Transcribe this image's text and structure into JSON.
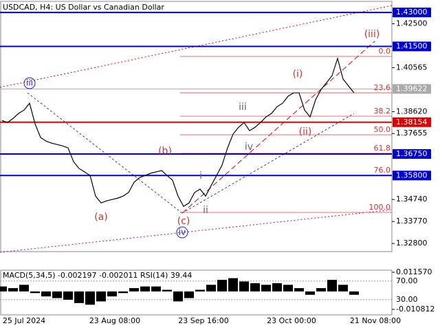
{
  "chart_data": {
    "type": "line",
    "title": "USDCAD, H4:  US Dollar vs Canadian Dollar",
    "color": "#000000",
    "ylim": [
      1.3247,
      1.4355
    ],
    "yticks": [
      {
        "value": 1.425,
        "label": "1.42500"
      },
      {
        "value": 1.40565,
        "label": "1.40565"
      },
      {
        "value": 1.3862,
        "label": "1.38620"
      },
      {
        "value": 1.37655,
        "label": "1.37655"
      },
      {
        "value": 1.3474,
        "label": "1.34740"
      },
      {
        "value": 1.3377,
        "label": "1.33770"
      },
      {
        "value": 1.328,
        "label": "1.32800"
      }
    ],
    "values": [
      1.3823,
      1.3814,
      1.3832,
      1.3854,
      1.3869,
      1.3899,
      1.3808,
      1.3748,
      1.3732,
      1.3723,
      1.3717,
      1.3711,
      1.3702,
      1.3641,
      1.3611,
      1.3596,
      1.358,
      1.3489,
      1.3459,
      1.3468,
      1.3474,
      1.348,
      1.3489,
      1.3505,
      1.355,
      1.3571,
      1.358,
      1.359,
      1.3596,
      1.3602,
      1.358,
      1.3559,
      1.3489,
      1.3444,
      1.3459,
      1.3505,
      1.352,
      1.3489,
      1.3535,
      1.358,
      1.3626,
      1.3702,
      1.3763,
      1.3793,
      1.3814,
      1.3778,
      1.3793,
      1.3814,
      1.3839,
      1.3854,
      1.3884,
      1.3899,
      1.393,
      1.3945,
      1.3945,
      1.3869,
      1.3839,
      1.3914,
      1.396,
      1.399,
      1.4021,
      1.4097,
      1.4006,
      1.3975,
      1.3945
    ],
    "x_labels": [
      "25 Jul 2024",
      "23 Aug 08:00",
      "23 Sep 16:00",
      "23 Oct 00:00",
      "21 Nov 08:00"
    ],
    "levels": [
      {
        "value": 1.43,
        "label": "1.43000",
        "color": "#0000cc"
      },
      {
        "value": 1.415,
        "label": "1.41500",
        "color": "#0000cc"
      },
      {
        "value": 1.39622,
        "label": "1.39622",
        "color": "#aaaaaa"
      },
      {
        "value": 1.38154,
        "label": "1.38154",
        "color": "#dd0000"
      },
      {
        "value": 1.3675,
        "label": "1.36750",
        "color": "#0000cc"
      },
      {
        "value": 1.358,
        "label": "1.35800",
        "color": "#0000cc"
      }
    ],
    "fib_levels": [
      {
        "label": "0.0",
        "price": 1.4106
      },
      {
        "label": "23.6",
        "price": 1.3945
      },
      {
        "label": "38.2",
        "price": 1.3842
      },
      {
        "label": "50.0",
        "price": 1.376
      },
      {
        "label": "61.8",
        "price": 1.3678
      },
      {
        "label": "76.0",
        "price": 1.3581
      },
      {
        "label": "100.0",
        "price": 1.3417
      }
    ],
    "waves": [
      "(iii)",
      "(i)",
      "(ii)",
      "iii",
      "iv",
      "i",
      "ii",
      "(a)",
      "(b)",
      "(c)",
      "iii",
      "iv"
    ],
    "indicator": {
      "label": "MACD(5,34,5) -0.002197 -0.002011 RSI(14) 39.44",
      "ylim": [
        {
          "value": -0.010812,
          "label": "-0.010812"
        },
        {
          "value": 0.01157,
          "label": "0.011570"
        }
      ],
      "rsi_levels": [
        {
          "value": 70,
          "label": "70.00"
        },
        {
          "value": 30,
          "label": "30.00"
        }
      ],
      "values": [
        0.003,
        0.002,
        0.004,
        -0.001,
        -0.003,
        -0.004,
        -0.005,
        -0.007,
        -0.008,
        -0.006,
        -0.003,
        -0.001,
        0.002,
        0.003,
        0.003,
        0.001,
        -0.006,
        -0.004,
        0.001,
        0.004,
        0.007,
        0.008,
        0.006,
        0.005,
        0.004,
        0.005,
        0.004,
        0.002,
        -0.002,
        0.002,
        0.007,
        0.004,
        -0.002
      ]
    }
  }
}
